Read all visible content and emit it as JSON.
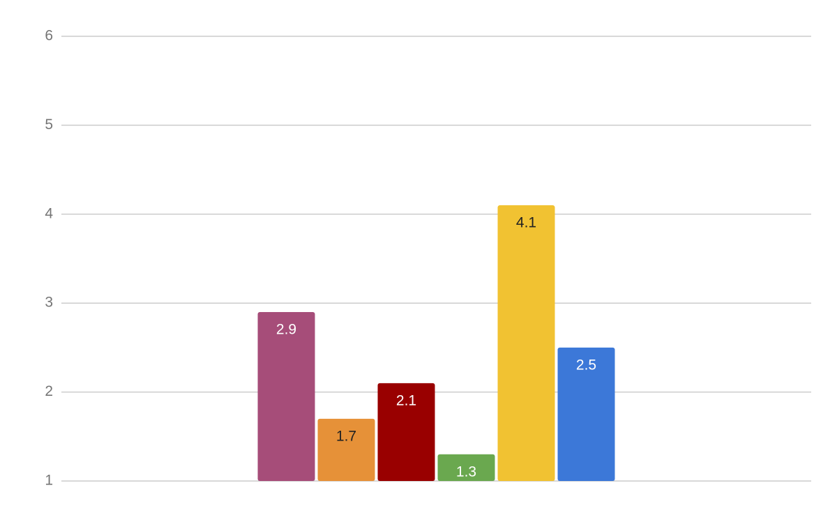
{
  "chart_data": {
    "type": "bar",
    "values": [
      2.9,
      1.7,
      2.1,
      1.3,
      4.1,
      2.5
    ],
    "colors": [
      "#a64d79",
      "#e69138",
      "#990000",
      "#6aa84f",
      "#f1c232",
      "#3c78d8"
    ],
    "ylim": [
      1,
      6
    ],
    "yticks": [
      1,
      2,
      3,
      4,
      5,
      6
    ],
    "grid": true
  }
}
